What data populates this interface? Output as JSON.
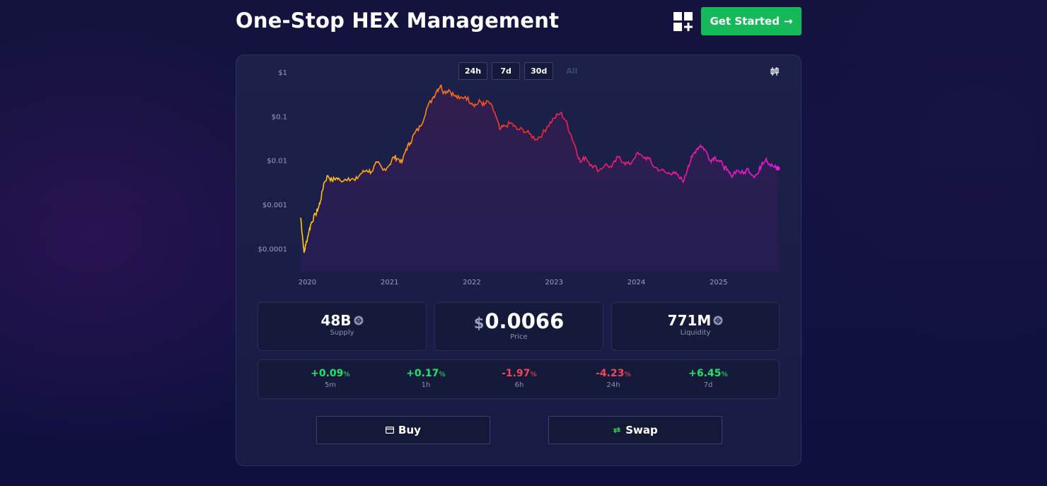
{
  "header": {
    "title": "One-Stop HEX Management",
    "cta_label": "Get Started",
    "cta_arrow": "→",
    "cta_color": "#16b95a"
  },
  "chart": {
    "ranges": [
      "24h",
      "7d",
      "30d",
      "All"
    ],
    "active_range": "All",
    "icons": {
      "grid_add": "grid-add-icon",
      "candles": "candlestick-icon"
    }
  },
  "chart_data": {
    "type": "line",
    "y_scale": "log",
    "ylim": [
      3e-05,
      1
    ],
    "yticks": [
      {
        "value": 1,
        "label": "$1"
      },
      {
        "value": 0.1,
        "label": "$0.1"
      },
      {
        "value": 0.01,
        "label": "$0.01"
      },
      {
        "value": 0.001,
        "label": "$0.001"
      },
      {
        "value": 0.0001,
        "label": "$0.0001"
      }
    ],
    "xticks": [
      "2020",
      "2021",
      "2022",
      "2023",
      "2024",
      "2025"
    ],
    "xlim": [
      2019.85,
      2025.75
    ],
    "gradient_colors": [
      "#ffcc11",
      "#ff8a1a",
      "#f22c2c",
      "#ee1a78",
      "#ee17e0"
    ],
    "series": [
      {
        "points": [
          [
            2019.92,
            0.0005
          ],
          [
            2019.94,
            0.0002
          ],
          [
            2019.96,
            8e-05
          ],
          [
            2019.98,
            0.00012
          ],
          [
            2020.02,
            0.00025
          ],
          [
            2020.05,
            0.0004
          ],
          [
            2020.1,
            0.0006
          ],
          [
            2020.13,
            0.0008
          ],
          [
            2020.16,
            0.0012
          ],
          [
            2020.2,
            0.003
          ],
          [
            2020.25,
            0.0045
          ],
          [
            2020.3,
            0.0035
          ],
          [
            2020.35,
            0.004
          ],
          [
            2020.4,
            0.0035
          ],
          [
            2020.5,
            0.004
          ],
          [
            2020.58,
            0.0035
          ],
          [
            2020.65,
            0.005
          ],
          [
            2020.72,
            0.006
          ],
          [
            2020.78,
            0.0055
          ],
          [
            2020.85,
            0.009
          ],
          [
            2020.92,
            0.006
          ],
          [
            2021.0,
            0.008
          ],
          [
            2021.05,
            0.012
          ],
          [
            2021.1,
            0.011
          ],
          [
            2021.15,
            0.009
          ],
          [
            2021.2,
            0.018
          ],
          [
            2021.25,
            0.025
          ],
          [
            2021.3,
            0.04
          ],
          [
            2021.38,
            0.06
          ],
          [
            2021.45,
            0.15
          ],
          [
            2021.52,
            0.25
          ],
          [
            2021.58,
            0.4
          ],
          [
            2021.62,
            0.5
          ],
          [
            2021.66,
            0.35
          ],
          [
            2021.72,
            0.4
          ],
          [
            2021.78,
            0.3
          ],
          [
            2021.85,
            0.25
          ],
          [
            2021.92,
            0.28
          ],
          [
            2022.0,
            0.2
          ],
          [
            2022.05,
            0.18
          ],
          [
            2022.1,
            0.22
          ],
          [
            2022.15,
            0.18
          ],
          [
            2022.2,
            0.22
          ],
          [
            2022.28,
            0.12
          ],
          [
            2022.34,
            0.05
          ],
          [
            2022.4,
            0.06
          ],
          [
            2022.48,
            0.07
          ],
          [
            2022.55,
            0.05
          ],
          [
            2022.62,
            0.05
          ],
          [
            2022.7,
            0.04
          ],
          [
            2022.78,
            0.03
          ],
          [
            2022.86,
            0.04
          ],
          [
            2022.92,
            0.06
          ],
          [
            2023.0,
            0.09
          ],
          [
            2023.08,
            0.12
          ],
          [
            2023.14,
            0.08
          ],
          [
            2023.2,
            0.04
          ],
          [
            2023.26,
            0.02
          ],
          [
            2023.32,
            0.009
          ],
          [
            2023.38,
            0.012
          ],
          [
            2023.45,
            0.008
          ],
          [
            2023.55,
            0.006
          ],
          [
            2023.62,
            0.008
          ],
          [
            2023.7,
            0.007
          ],
          [
            2023.78,
            0.012
          ],
          [
            2023.85,
            0.009
          ],
          [
            2023.92,
            0.008
          ],
          [
            2024.0,
            0.014
          ],
          [
            2024.08,
            0.012
          ],
          [
            2024.15,
            0.011
          ],
          [
            2024.22,
            0.007
          ],
          [
            2024.3,
            0.006
          ],
          [
            2024.38,
            0.005
          ],
          [
            2024.45,
            0.0055
          ],
          [
            2024.52,
            0.004
          ],
          [
            2024.58,
            0.0035
          ],
          [
            2024.63,
            0.0075
          ],
          [
            2024.68,
            0.012
          ],
          [
            2024.73,
            0.018
          ],
          [
            2024.78,
            0.022
          ],
          [
            2024.83,
            0.018
          ],
          [
            2024.9,
            0.01
          ],
          [
            2024.95,
            0.012
          ],
          [
            2025.0,
            0.01
          ],
          [
            2025.05,
            0.008
          ],
          [
            2025.1,
            0.006
          ],
          [
            2025.15,
            0.0045
          ],
          [
            2025.22,
            0.006
          ],
          [
            2025.3,
            0.005
          ],
          [
            2025.36,
            0.0065
          ],
          [
            2025.42,
            0.0045
          ],
          [
            2025.48,
            0.005
          ],
          [
            2025.53,
            0.009
          ],
          [
            2025.58,
            0.011
          ],
          [
            2025.62,
            0.008
          ],
          [
            2025.68,
            0.007
          ],
          [
            2025.72,
            0.0066
          ]
        ]
      }
    ]
  },
  "stats": {
    "supply": {
      "value": "48B",
      "label": "Supply"
    },
    "price": {
      "currency": "$",
      "value": "0.0066",
      "label": "Price"
    },
    "liquidity": {
      "value": "771M",
      "label": "Liquidity"
    }
  },
  "changes": [
    {
      "value": "+0.09",
      "unit": "%",
      "label": "5m",
      "direction": "up"
    },
    {
      "value": "+0.17",
      "unit": "%",
      "label": "1h",
      "direction": "up"
    },
    {
      "value": "-1.97",
      "unit": "%",
      "label": "6h",
      "direction": "down"
    },
    {
      "value": "-4.23",
      "unit": "%",
      "label": "24h",
      "direction": "down"
    },
    {
      "value": "+6.45",
      "unit": "%",
      "label": "7d",
      "direction": "up"
    }
  ],
  "actions": {
    "buy_label": "Buy",
    "swap_label": "Swap"
  }
}
